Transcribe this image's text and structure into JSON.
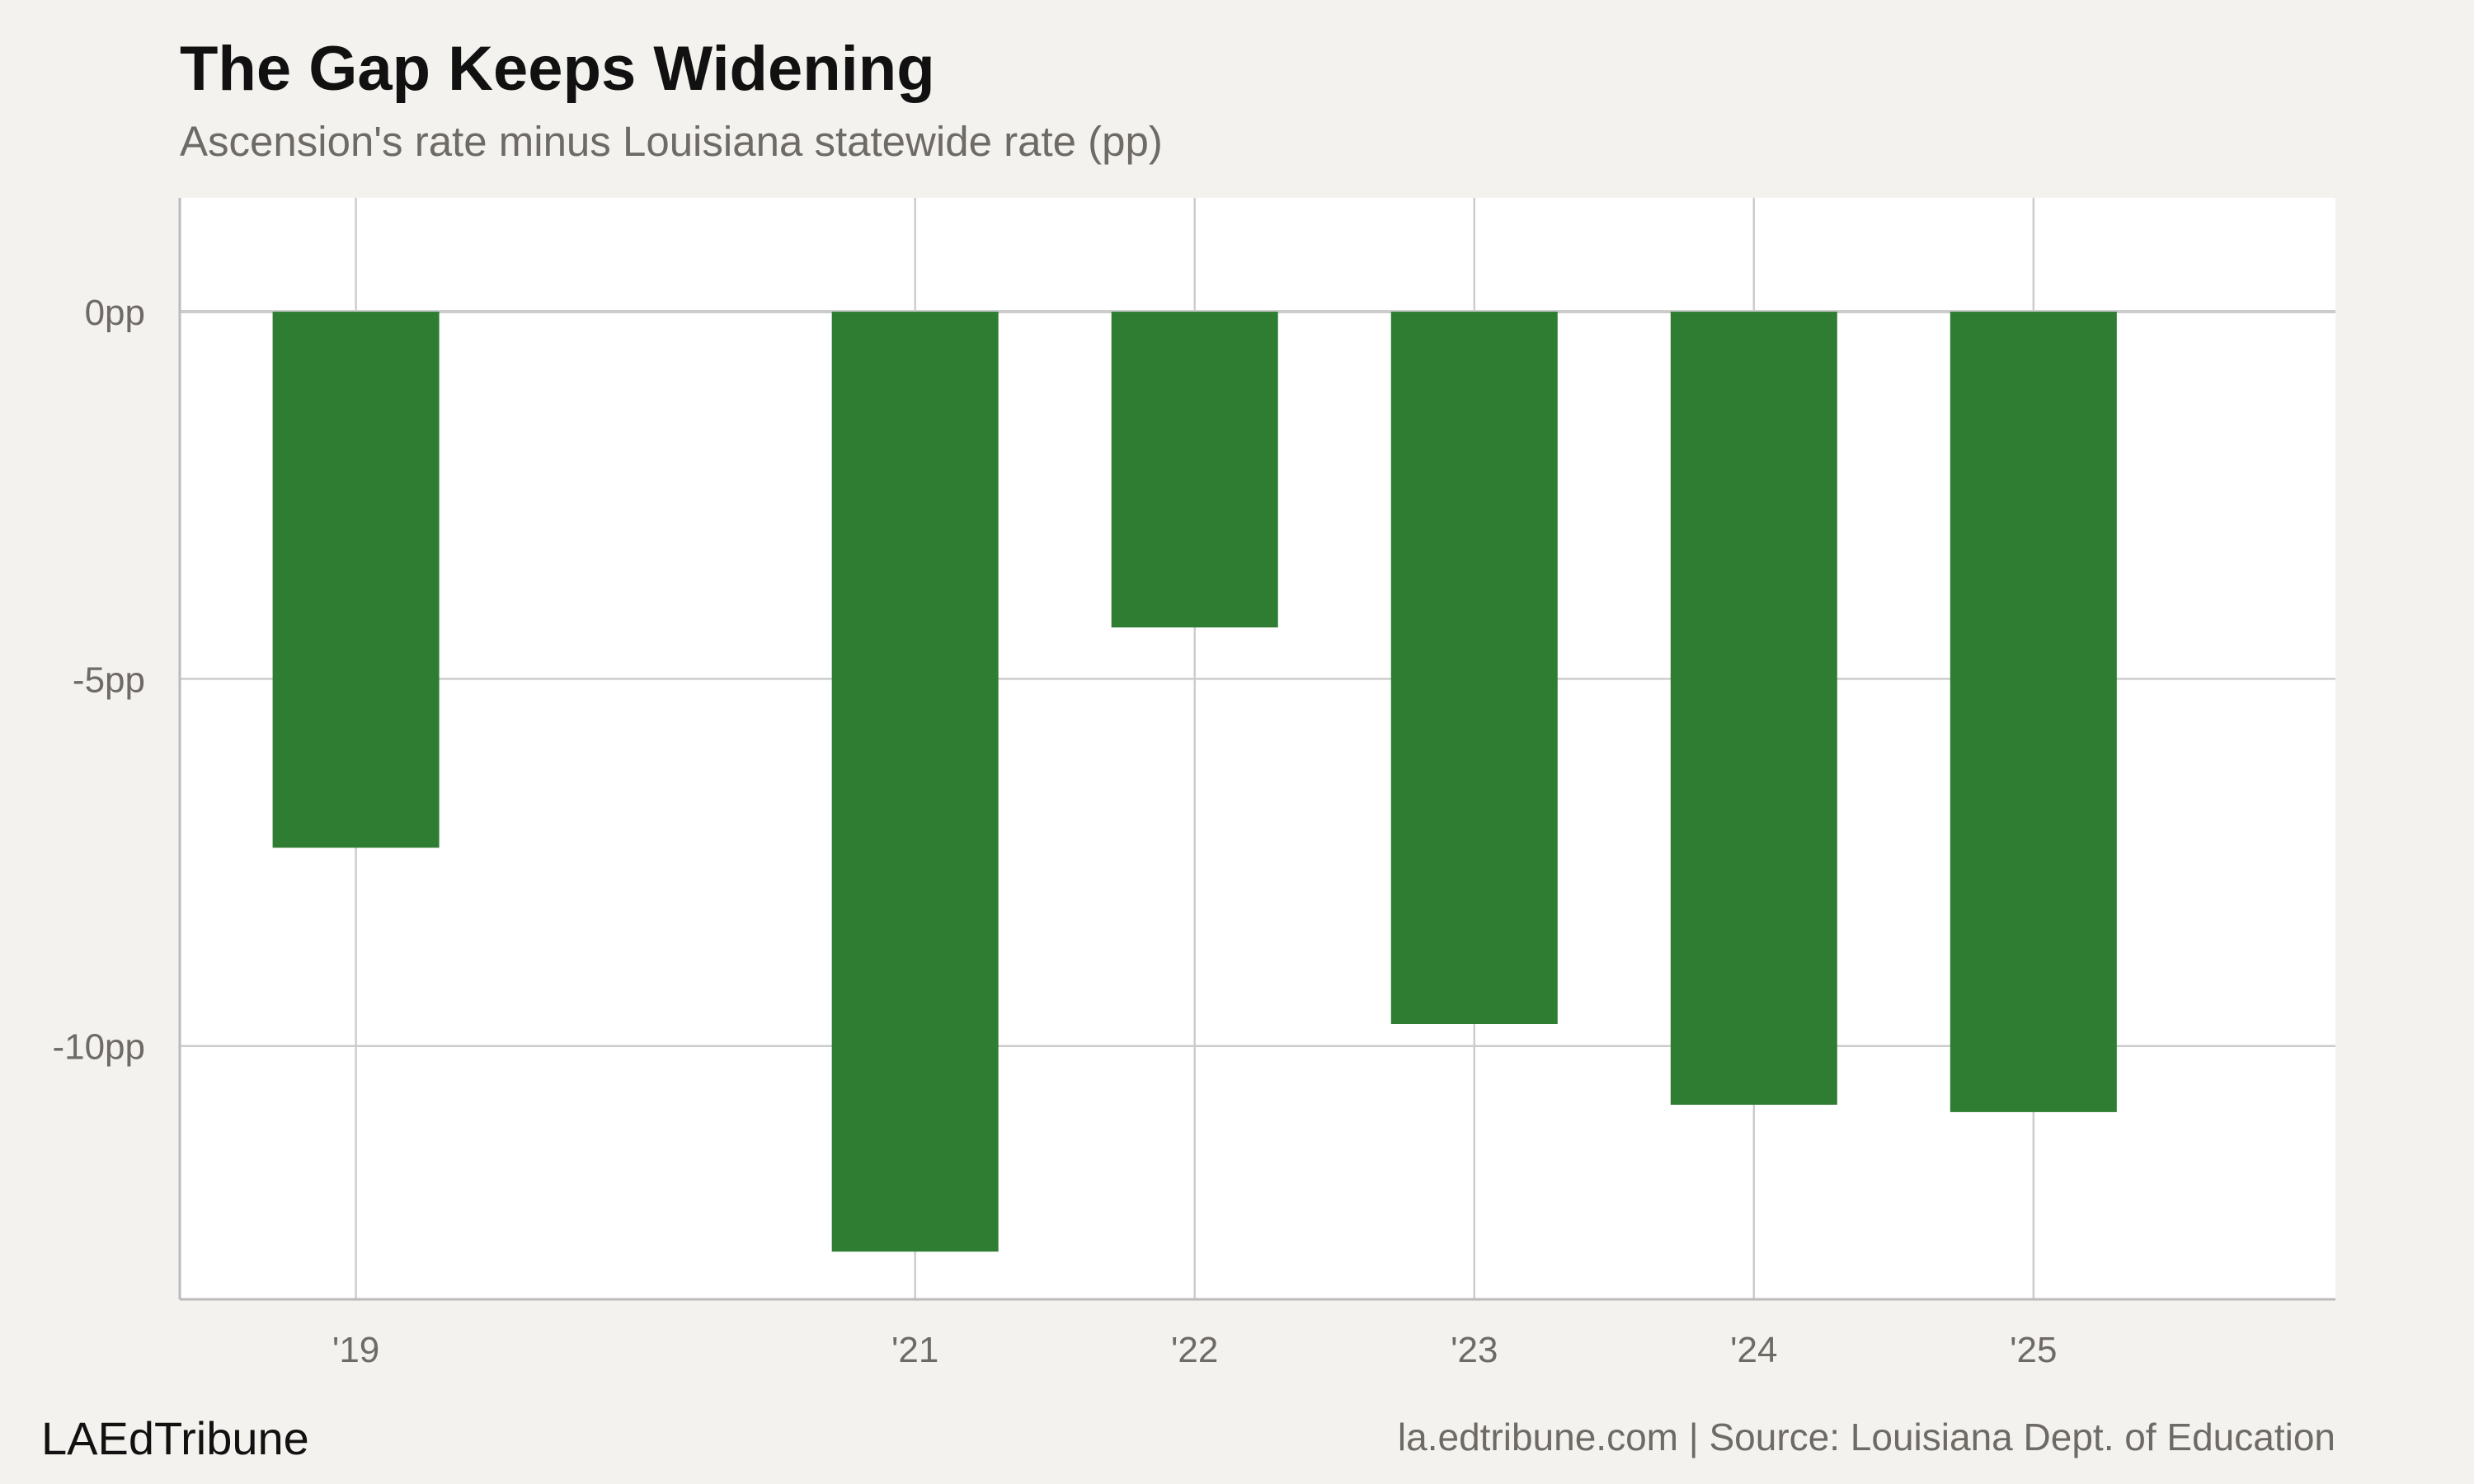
{
  "chart_data": {
    "type": "bar",
    "title": "The Gap Keeps Widening",
    "subtitle": "Ascension's rate minus Louisiana statewide rate (pp)",
    "categories": [
      "'19",
      "'21",
      "'22",
      "'23",
      "'24",
      "'25"
    ],
    "x": [
      2019,
      2021,
      2022,
      2023,
      2024,
      2025
    ],
    "xlim": [
      2018.37,
      2026.08
    ],
    "values": [
      -7.3,
      -12.8,
      -4.3,
      -9.7,
      -10.8,
      -10.9
    ],
    "ylim": [
      -13.45,
      1.55
    ],
    "yticks": [
      0,
      -5,
      -10
    ],
    "ytick_labels": [
      "0pp",
      "-5pp",
      "-10pp"
    ],
    "xlabel": "",
    "ylabel": "",
    "grid": true,
    "colors": {
      "bar": "#2e7d32",
      "plot_background": "#ffffff",
      "page_background": "#f4f2ee",
      "grid": "#cccccc",
      "axis": "#bbbbbb"
    }
  },
  "footer": {
    "brand": "LAEdTribune",
    "source": "la.edtribune.com | Source: Louisiana Dept. of Education"
  }
}
